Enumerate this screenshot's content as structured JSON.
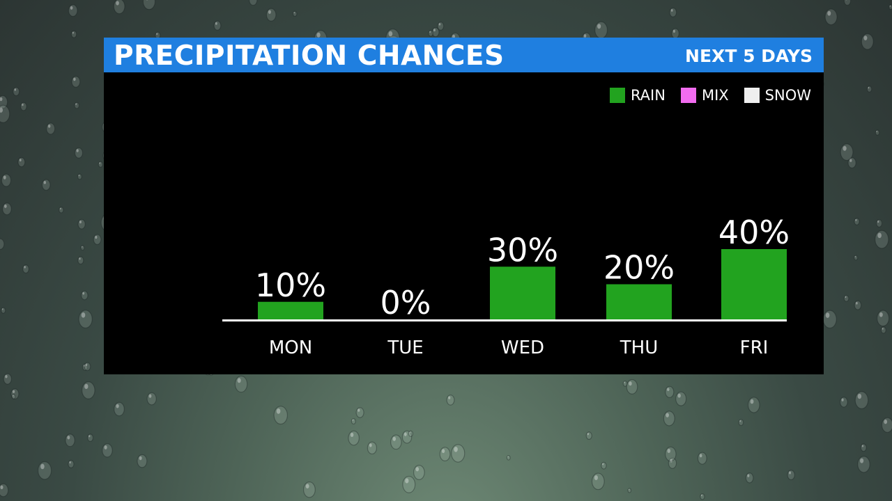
{
  "header": {
    "title": "PRECIPITATION CHANCES",
    "subtitle": "NEXT 5 DAYS"
  },
  "legend": [
    {
      "label": "RAIN",
      "color": "#22a31f"
    },
    {
      "label": "MIX",
      "color": "#f26cf0"
    },
    {
      "label": "SNOW",
      "color": "#efefef"
    }
  ],
  "chart_data": {
    "type": "bar",
    "title": "PRECIPITATION CHANCES",
    "subtitle": "NEXT 5 DAYS",
    "categories": [
      "MON",
      "TUE",
      "WED",
      "THU",
      "FRI"
    ],
    "series": [
      {
        "name": "RAIN",
        "values": [
          10,
          0,
          30,
          20,
          40
        ],
        "color": "#22a31f"
      }
    ],
    "data_labels": [
      "10%",
      "0%",
      "30%",
      "20%",
      "40%"
    ],
    "unit": "%",
    "ylim": [
      0,
      40
    ],
    "grid": false,
    "legend": "top-right"
  }
}
